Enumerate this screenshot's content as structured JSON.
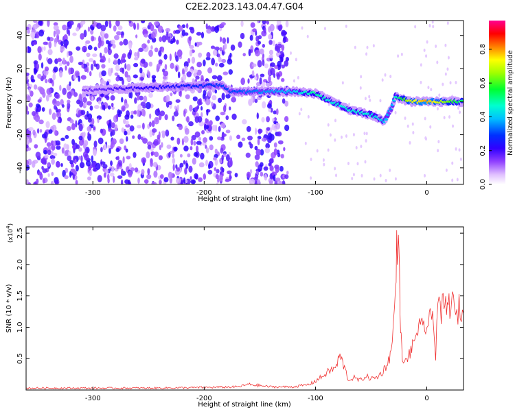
{
  "title": "C2E2.2023.143.04.47.G04",
  "chart_data": [
    {
      "type": "heatmap",
      "ylabel": "Frequency (Hz)",
      "xlabel": "Height of straight line (km)",
      "xlim": [
        -360,
        33
      ],
      "ylim": [
        -50,
        49
      ],
      "x_ticks": [
        -300,
        -200,
        -100,
        0
      ],
      "x_tick_labels": [
        "-300",
        "-200",
        "-100",
        "0"
      ],
      "y_ticks": [
        -40,
        -20,
        0,
        20,
        40
      ],
      "y_tick_labels": [
        "-40",
        "-20",
        "0",
        "20",
        "40"
      ],
      "colorbar": {
        "label": "Normalized spectral amplitude",
        "range": [
          0,
          0.97
        ],
        "ticks": [
          0,
          0.2,
          0.4,
          0.6,
          0.8
        ],
        "tick_labels": [
          "0.0",
          "0.2",
          "0.4",
          "0.6",
          "0.8"
        ],
        "colors": [
          "#ffffff",
          "#e8c8ff",
          "#b060ff",
          "#6600ff",
          "#0000ff",
          "#00ffff",
          "#00ff00",
          "#ffff00",
          "#ff0000",
          "#ff00a0"
        ]
      },
      "ridge": {
        "name": "signal ridge",
        "points": [
          {
            "x": -308,
            "y": 7,
            "amp": 0.15
          },
          {
            "x": -185,
            "y": 10,
            "amp": 0.3
          },
          {
            "x": -175,
            "y": 6,
            "amp": 0.3
          },
          {
            "x": -120,
            "y": 6,
            "amp": 0.4
          },
          {
            "x": -100,
            "y": 5,
            "amp": 0.5
          },
          {
            "x": -85,
            "y": 0,
            "amp": 0.45
          },
          {
            "x": -70,
            "y": -5,
            "amp": 0.45
          },
          {
            "x": -50,
            "y": -8,
            "amp": 0.45
          },
          {
            "x": -38,
            "y": -12,
            "amp": 0.4
          },
          {
            "x": -32,
            "y": -4,
            "amp": 0.35
          },
          {
            "x": -28,
            "y": 3,
            "amp": 0.45
          },
          {
            "x": -15,
            "y": 0,
            "amp": 0.7
          },
          {
            "x": 0,
            "y": 0,
            "amp": 0.8
          },
          {
            "x": 33,
            "y": 0,
            "amp": 0.5
          }
        ]
      }
    },
    {
      "type": "line",
      "ylabel": "SNR (10 * v/v)",
      "y_multiplier": "(x10",
      "y_multiplier_exp": "4",
      "y_multiplier_close": ")",
      "xlabel": "Height of straight line (km)",
      "xlim": [
        -360,
        33
      ],
      "ylim": [
        0,
        2.6
      ],
      "x_ticks": [
        -300,
        -200,
        -100,
        0
      ],
      "x_tick_labels": [
        "-300",
        "-200",
        "-100",
        "0"
      ],
      "y_ticks": [
        0.5,
        1.0,
        1.5,
        2.0,
        2.5
      ],
      "y_tick_labels": [
        "0.5",
        "1.0",
        "1.5",
        "2.0",
        "2.5"
      ],
      "line_color": "#f03030",
      "series": [
        {
          "x": [
            -360,
            -300,
            -250,
            -200,
            -170,
            -160,
            -140,
            -120,
            -105,
            -95,
            -88,
            -82,
            -78,
            -74,
            -70,
            -66,
            -60,
            -55,
            -50,
            -45,
            -40,
            -36,
            -32,
            -30,
            -28,
            -27,
            -26,
            -25,
            -24,
            -23,
            -22,
            -20,
            -18,
            -15,
            -12,
            -10,
            -8,
            -5,
            -2,
            0,
            3,
            6,
            8,
            10,
            12,
            14,
            17,
            20,
            23,
            25,
            27,
            29,
            31,
            33
          ],
          "y": [
            0.03,
            0.03,
            0.03,
            0.04,
            0.05,
            0.09,
            0.05,
            0.05,
            0.09,
            0.2,
            0.3,
            0.35,
            0.55,
            0.35,
            0.15,
            0.2,
            0.15,
            0.22,
            0.18,
            0.2,
            0.28,
            0.4,
            0.6,
            1.0,
            1.6,
            2.2,
            2.6,
            2.0,
            1.4,
            0.8,
            0.5,
            0.4,
            0.5,
            0.6,
            0.7,
            0.9,
            1.0,
            0.95,
            1.05,
            1.0,
            1.1,
            1.25,
            0.5,
            1.55,
            1.2,
            1.3,
            1.3,
            1.35,
            1.45,
            1.15,
            1.2,
            1.3,
            1.25,
            1.22
          ]
        }
      ]
    }
  ]
}
